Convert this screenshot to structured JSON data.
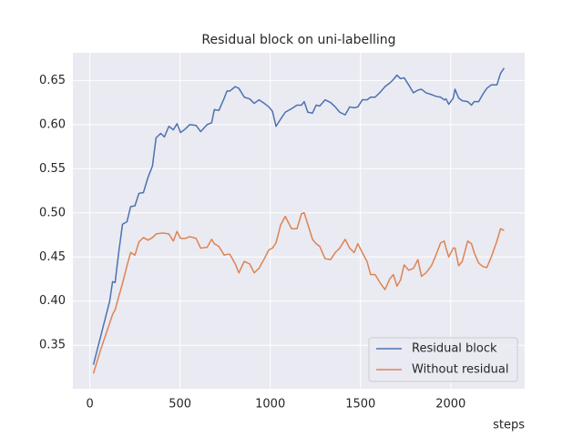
{
  "chart_data": {
    "type": "line",
    "title": "Residual block on uni-labelling",
    "x_label": "steps",
    "x": [
      20,
      60,
      110,
      126,
      140,
      160,
      181,
      206,
      226,
      250,
      272,
      297,
      322,
      347,
      367,
      393,
      413,
      438,
      463,
      483,
      503,
      529,
      554,
      589,
      614,
      650,
      675,
      690,
      715,
      745,
      760,
      776,
      806,
      826,
      856,
      886,
      911,
      937,
      967,
      992,
      1012,
      1032,
      1057,
      1083,
      1118,
      1148,
      1173,
      1188,
      1208,
      1234,
      1254,
      1274,
      1304,
      1334,
      1360,
      1385,
      1415,
      1440,
      1465,
      1485,
      1510,
      1536,
      1556,
      1581,
      1611,
      1636,
      1662,
      1682,
      1702,
      1722,
      1742,
      1767,
      1793,
      1818,
      1838,
      1863,
      1893,
      1918,
      1944,
      1964,
      1974,
      1989,
      2014,
      2024,
      2044,
      2064,
      2094,
      2115,
      2130,
      2155,
      2180,
      2200,
      2225,
      2256,
      2276,
      2296
    ],
    "series": [
      {
        "name": "Residual block",
        "color": "#4c72b0",
        "values": [
          0.328,
          0.36,
          0.4,
          0.422,
          0.421,
          0.455,
          0.487,
          0.49,
          0.507,
          0.508,
          0.522,
          0.523,
          0.54,
          0.553,
          0.585,
          0.59,
          0.586,
          0.598,
          0.594,
          0.601,
          0.591,
          0.595,
          0.6,
          0.599,
          0.592,
          0.6,
          0.602,
          0.617,
          0.616,
          0.63,
          0.638,
          0.638,
          0.643,
          0.641,
          0.631,
          0.629,
          0.624,
          0.628,
          0.624,
          0.62,
          0.615,
          0.598,
          0.606,
          0.614,
          0.618,
          0.622,
          0.622,
          0.626,
          0.614,
          0.613,
          0.622,
          0.621,
          0.628,
          0.625,
          0.62,
          0.614,
          0.611,
          0.62,
          0.619,
          0.62,
          0.628,
          0.628,
          0.631,
          0.631,
          0.637,
          0.643,
          0.647,
          0.651,
          0.656,
          0.652,
          0.653,
          0.645,
          0.636,
          0.639,
          0.64,
          0.636,
          0.634,
          0.632,
          0.631,
          0.628,
          0.629,
          0.623,
          0.63,
          0.64,
          0.63,
          0.627,
          0.626,
          0.622,
          0.626,
          0.626,
          0.635,
          0.641,
          0.645,
          0.645,
          0.658,
          0.664
        ]
      },
      {
        "name": "Without residual",
        "color": "#dd8452",
        "values": [
          0.318,
          0.345,
          0.375,
          0.385,
          0.39,
          0.405,
          0.42,
          0.44,
          0.455,
          0.452,
          0.467,
          0.472,
          0.469,
          0.472,
          0.476,
          0.477,
          0.477,
          0.476,
          0.468,
          0.479,
          0.471,
          0.471,
          0.473,
          0.471,
          0.46,
          0.461,
          0.47,
          0.465,
          0.462,
          0.452,
          0.453,
          0.453,
          0.442,
          0.432,
          0.445,
          0.442,
          0.432,
          0.437,
          0.448,
          0.458,
          0.46,
          0.466,
          0.486,
          0.496,
          0.482,
          0.482,
          0.499,
          0.5,
          0.487,
          0.47,
          0.465,
          0.462,
          0.448,
          0.447,
          0.455,
          0.46,
          0.47,
          0.46,
          0.455,
          0.465,
          0.455,
          0.445,
          0.43,
          0.43,
          0.42,
          0.413,
          0.425,
          0.43,
          0.417,
          0.424,
          0.441,
          0.435,
          0.437,
          0.447,
          0.428,
          0.432,
          0.44,
          0.452,
          0.466,
          0.468,
          0.46,
          0.45,
          0.46,
          0.46,
          0.44,
          0.445,
          0.468,
          0.465,
          0.455,
          0.443,
          0.439,
          0.438,
          0.45,
          0.468,
          0.482,
          0.48
        ]
      }
    ],
    "xlim": [
      -94,
      2410
    ],
    "xticks": [
      0,
      500,
      1000,
      1500,
      2000
    ],
    "ylim": [
      0.3007,
      0.6813
    ],
    "yticks": [
      0.35,
      {
        "value": 0.4,
        "label": "0.40"
      },
      0.45,
      {
        "value": 0.5,
        "label": "0.50"
      },
      0.55,
      {
        "value": 0.6,
        "label": "0.60"
      },
      0.65
    ],
    "grid": true,
    "legend": "lower right"
  }
}
